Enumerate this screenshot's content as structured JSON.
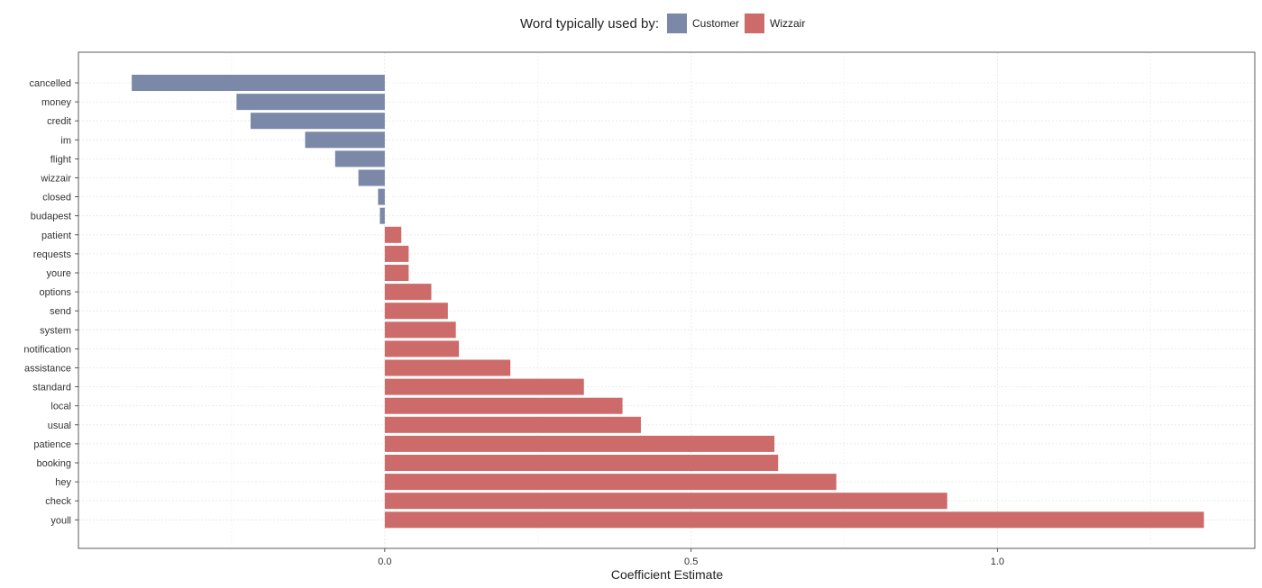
{
  "chart_data": {
    "type": "bar",
    "orientation": "horizontal",
    "legend": {
      "title": "Word typically used by:",
      "position": "top",
      "entries": [
        {
          "label": "Customer",
          "color": "#7b88a8"
        },
        {
          "label": "Wizzair",
          "color": "#cc6b69"
        }
      ]
    },
    "xlabel": "Coefficient Estimate",
    "ylabel": "",
    "xlim": [
      -0.5,
      1.42
    ],
    "x_ticks": [
      {
        "value": 0.0,
        "label": "0.0"
      },
      {
        "value": 0.5,
        "label": "0.5"
      },
      {
        "value": 1.0,
        "label": "1.0"
      }
    ],
    "x_minor_ticks": [
      -0.25,
      0.25,
      0.75,
      1.25
    ],
    "grid": true,
    "categories": [
      "cancelled",
      "money",
      "credit",
      "im",
      "flight",
      "wizzair",
      "closed",
      "budapest",
      "patient",
      "requests",
      "youre",
      "options",
      "send",
      "system",
      "notification",
      "assistance",
      "standard",
      "local",
      "usual",
      "patience",
      "booking",
      "hey",
      "check",
      "youll"
    ],
    "values": [
      -0.413,
      -0.242,
      -0.219,
      -0.13,
      -0.081,
      -0.043,
      -0.011,
      -0.008,
      0.027,
      0.039,
      0.039,
      0.076,
      0.103,
      0.116,
      0.121,
      0.205,
      0.325,
      0.388,
      0.418,
      0.636,
      0.642,
      0.737,
      0.918,
      1.337
    ],
    "groups": [
      "Customer",
      "Customer",
      "Customer",
      "Customer",
      "Customer",
      "Customer",
      "Customer",
      "Customer",
      "Wizzair",
      "Wizzair",
      "Wizzair",
      "Wizzair",
      "Wizzair",
      "Wizzair",
      "Wizzair",
      "Wizzair",
      "Wizzair",
      "Wizzair",
      "Wizzair",
      "Wizzair",
      "Wizzair",
      "Wizzair",
      "Wizzair",
      "Wizzair"
    ]
  }
}
